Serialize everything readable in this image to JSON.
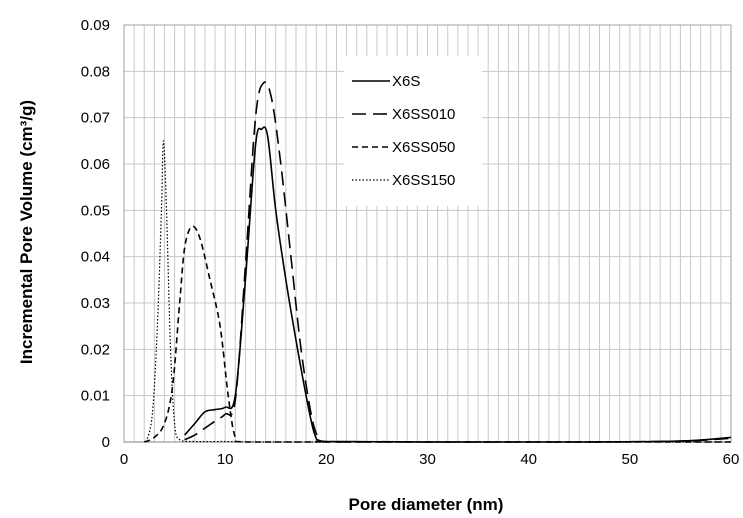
{
  "chart_data": {
    "type": "line",
    "title": "",
    "xlabel": "Pore diameter (nm)",
    "ylabel": "Incremental Pore Volume (cm³/g)",
    "xlim": [
      0,
      60
    ],
    "ylim": [
      0,
      0.09
    ],
    "x_ticks": [
      "0",
      "10",
      "20",
      "30",
      "40",
      "50",
      "60"
    ],
    "y_ticks": [
      "0",
      "0.01",
      "0.02",
      "0.03",
      "0.04",
      "0.05",
      "0.06",
      "0.07",
      "0.08",
      "0.09"
    ],
    "grid": true,
    "minor_x_grid_step": 1,
    "major_y_grid_step": 0.01,
    "legend_position": "top-center",
    "series": [
      {
        "name": "X6S",
        "line_style": "solid",
        "color": "#000000",
        "points": [
          [
            6,
            0.0015
          ],
          [
            7,
            0.004
          ],
          [
            8,
            0.0065
          ],
          [
            9,
            0.007
          ],
          [
            10,
            0.0075
          ],
          [
            11,
            0.01
          ],
          [
            12,
            0.035
          ],
          [
            13,
            0.064
          ],
          [
            13.6,
            0.0675
          ],
          [
            14.2,
            0.066
          ],
          [
            15,
            0.05
          ],
          [
            16,
            0.035
          ],
          [
            17,
            0.022
          ],
          [
            18,
            0.01
          ],
          [
            18.8,
            0.002
          ],
          [
            19.5,
            0.0002
          ],
          [
            22,
            0.0001
          ],
          [
            30,
            0
          ],
          [
            45,
            0
          ],
          [
            55,
            0.0002
          ],
          [
            60,
            0.001
          ]
        ]
      },
      {
        "name": "X6SS010",
        "line_style": "long-dash",
        "color": "#000000",
        "points": [
          [
            6,
            0.0005
          ],
          [
            7,
            0.0015
          ],
          [
            8,
            0.003
          ],
          [
            9,
            0.0045
          ],
          [
            10,
            0.006
          ],
          [
            11,
            0.009
          ],
          [
            12,
            0.038
          ],
          [
            13,
            0.07
          ],
          [
            13.8,
            0.0775
          ],
          [
            14.6,
            0.074
          ],
          [
            15.5,
            0.06
          ],
          [
            16.5,
            0.04
          ],
          [
            17.5,
            0.02
          ],
          [
            18.5,
            0.006
          ],
          [
            19.2,
            0.001
          ],
          [
            20,
            0
          ],
          [
            30,
            0
          ],
          [
            45,
            0
          ],
          [
            55,
            0.0002
          ],
          [
            60,
            0.0008
          ]
        ]
      },
      {
        "name": "X6SS050",
        "line_style": "short-dash",
        "color": "#000000",
        "points": [
          [
            2,
            0
          ],
          [
            3,
            0.001
          ],
          [
            4,
            0.004
          ],
          [
            4.8,
            0.012
          ],
          [
            5.5,
            0.03
          ],
          [
            6,
            0.042
          ],
          [
            6.7,
            0.0465
          ],
          [
            7.5,
            0.044
          ],
          [
            8.5,
            0.035
          ],
          [
            9.5,
            0.025
          ],
          [
            10.3,
            0.01
          ],
          [
            11,
            0.001
          ],
          [
            12,
            0
          ],
          [
            20,
            0
          ],
          [
            40,
            0
          ],
          [
            60,
            0
          ]
        ]
      },
      {
        "name": "X6SS150",
        "line_style": "dotted",
        "color": "#000000",
        "points": [
          [
            2.2,
            0
          ],
          [
            2.8,
            0.006
          ],
          [
            3.3,
            0.025
          ],
          [
            3.7,
            0.05
          ],
          [
            3.9,
            0.065
          ],
          [
            4.2,
            0.05
          ],
          [
            4.6,
            0.02
          ],
          [
            5,
            0.004
          ],
          [
            5.5,
            0.0005
          ],
          [
            7,
            0.0001
          ],
          [
            10,
            0.0001
          ],
          [
            15,
            0
          ],
          [
            40,
            0
          ],
          [
            60,
            0
          ]
        ]
      }
    ]
  }
}
